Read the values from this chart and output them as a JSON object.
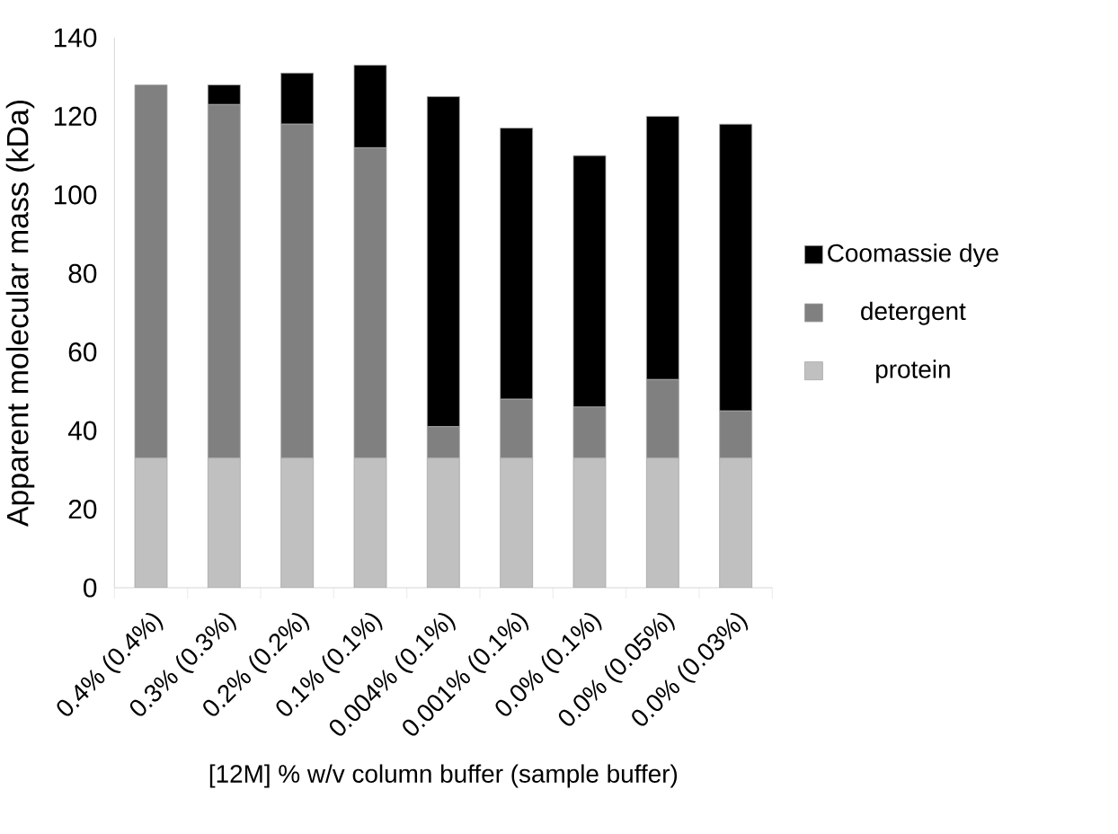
{
  "chart_data": {
    "type": "bar",
    "stacked": true,
    "xlabel": "[12M] % w/v column buffer (sample buffer)",
    "ylabel": "Apparent molecular mass (kDa)",
    "categories": [
      "0.4% (0.4%)",
      "0.3% (0.3%)",
      "0.2% (0.2%)",
      "0.1% (0.1%)",
      "0.004% (0.1%)",
      "0.001% (0.1%)",
      "0.0% (0.1%)",
      "0.0% (0.05%)",
      "0.0% (0.03%)"
    ],
    "series": [
      {
        "name": "protein",
        "color": "#c0c0c0",
        "values": [
          33,
          33,
          33,
          33,
          33,
          33,
          33,
          33,
          33
        ]
      },
      {
        "name": "detergent",
        "color": "#808080",
        "values": [
          95,
          90,
          85,
          79,
          8,
          15,
          13,
          20,
          12
        ]
      },
      {
        "name": "Coomassie dye",
        "color": "#000000",
        "values": [
          0,
          5,
          13,
          21,
          84,
          69,
          64,
          67,
          73
        ]
      }
    ],
    "ylim": [
      0,
      140
    ],
    "yticks": [
      0,
      20,
      40,
      60,
      80,
      100,
      120,
      140
    ],
    "grid": false,
    "legend": "right"
  }
}
